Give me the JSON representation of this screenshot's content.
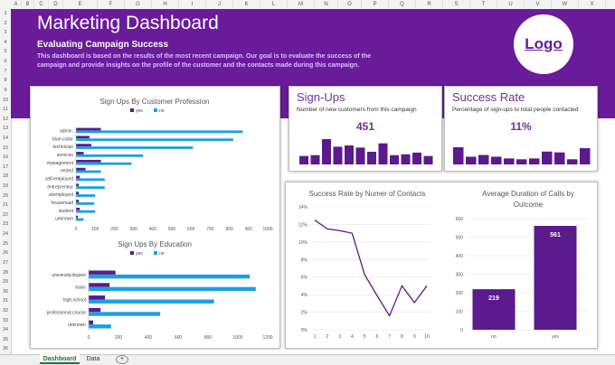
{
  "sheet": {
    "columns": [
      "A",
      "B",
      "C",
      "D",
      "E",
      "F",
      "G",
      "H",
      "I",
      "J",
      "K",
      "L",
      "M",
      "N",
      "O",
      "P",
      "Q",
      "R",
      "S",
      "T",
      "U",
      "V",
      "W",
      "X"
    ],
    "rows": [
      "1",
      "2",
      "3",
      "4",
      "5",
      "6",
      "7",
      "8",
      "9",
      "10",
      "11",
      "12",
      "13",
      "14",
      "15",
      "16",
      "17",
      "18",
      "19",
      "20",
      "21",
      "22",
      "23",
      "24",
      "25",
      "26",
      "27",
      "28",
      "29",
      "30",
      "31",
      "32",
      "33",
      "34",
      "35",
      "36"
    ],
    "tabs": {
      "dashboard": "Dashboard",
      "data": "Data",
      "add": "+"
    }
  },
  "header": {
    "title": "Marketing Dashboard",
    "subtitle": "Evaluating Campaign Success",
    "description": "This dashboard is based on the results of the most recent campaign. Our goal is to evaluate the success of the campaign and provide insights on the profile of the customer and the contacts made during this campaign.",
    "logo": "Logo"
  },
  "colors": {
    "banner": "#6a1b9a",
    "yes": "#5b1a8e",
    "no": "#1ba1e2",
    "accent": "#7030a0"
  },
  "kpis": {
    "signups": {
      "title": "Sign-Ups",
      "subtitle": "Number of new customers from this campaign",
      "value": "451"
    },
    "success": {
      "title": "Success Rate",
      "subtitle": "Percentage of sign-ups to total people contacted",
      "value": "11%"
    }
  },
  "chart_data": [
    {
      "id": "profession",
      "type": "bar",
      "orientation": "horizontal",
      "title": "Sign Ups By Customer Profession",
      "legend": [
        "yes",
        "no"
      ],
      "categories": [
        "admin.",
        "blue-collar",
        "technician",
        "services",
        "management",
        "retired",
        "self-employed",
        "entrepreneur",
        "unemployed",
        "housemaid",
        "student",
        "unknown"
      ],
      "series": [
        {
          "name": "yes",
          "values": [
            130,
            70,
            80,
            40,
            130,
            50,
            20,
            15,
            15,
            15,
            20,
            10
          ]
        },
        {
          "name": "no",
          "values": [
            870,
            820,
            610,
            350,
            290,
            130,
            150,
            150,
            100,
            95,
            100,
            40
          ]
        }
      ],
      "xlim": [
        0,
        1000
      ],
      "ticks": [
        "0",
        "100",
        "200",
        "300",
        "400",
        "500",
        "600",
        "700",
        "800",
        "900",
        "1000"
      ]
    },
    {
      "id": "education",
      "type": "bar",
      "orientation": "horizontal",
      "title": "Sign Ups By Education",
      "legend": [
        "yes",
        "no"
      ],
      "categories": [
        "university.degree",
        "basic",
        "high.school",
        "professional.course",
        "unknown"
      ],
      "series": [
        {
          "name": "yes",
          "values": [
            180,
            140,
            110,
            80,
            30
          ]
        },
        {
          "name": "no",
          "values": [
            1080,
            1120,
            840,
            480,
            150
          ]
        }
      ],
      "xlim": [
        0,
        1200
      ],
      "ticks": [
        "0",
        "200",
        "400",
        "600",
        "800",
        "1000",
        "1200"
      ]
    },
    {
      "id": "signups_spark",
      "type": "bar",
      "title": "Sign-Ups sparkline",
      "values": [
        20,
        22,
        60,
        42,
        45,
        40,
        30,
        50,
        22,
        24,
        28,
        20
      ]
    },
    {
      "id": "success_spark",
      "type": "bar",
      "title": "Success Rate sparkline",
      "values": [
        40,
        18,
        22,
        18,
        14,
        12,
        14,
        30,
        28,
        12,
        38
      ]
    },
    {
      "id": "contacts",
      "type": "line",
      "title": "Success Rate by Numer of Contacts",
      "x": [
        1,
        2,
        3,
        4,
        5,
        6,
        7,
        8,
        9,
        10
      ],
      "y": [
        12.5,
        11.5,
        11.3,
        11.0,
        6.3,
        3.9,
        1.6,
        5.0,
        3.1,
        5.0
      ],
      "ylim": [
        0,
        14
      ],
      "yticks": [
        "0%",
        "2%",
        "4%",
        "6%",
        "8%",
        "10%",
        "12%",
        "14%"
      ],
      "xticks": [
        "1",
        "2",
        "3",
        "4",
        "5",
        "6",
        "7",
        "8",
        "9",
        "10"
      ]
    },
    {
      "id": "duration",
      "type": "bar",
      "title": "Average Duration of Calls by Outcome",
      "categories": [
        "no",
        "yes"
      ],
      "values": [
        219,
        561
      ],
      "labels": [
        "219",
        "561"
      ],
      "ylim": [
        0,
        600
      ],
      "yticks": [
        "0",
        "100",
        "200",
        "300",
        "400",
        "500",
        "600"
      ]
    }
  ]
}
